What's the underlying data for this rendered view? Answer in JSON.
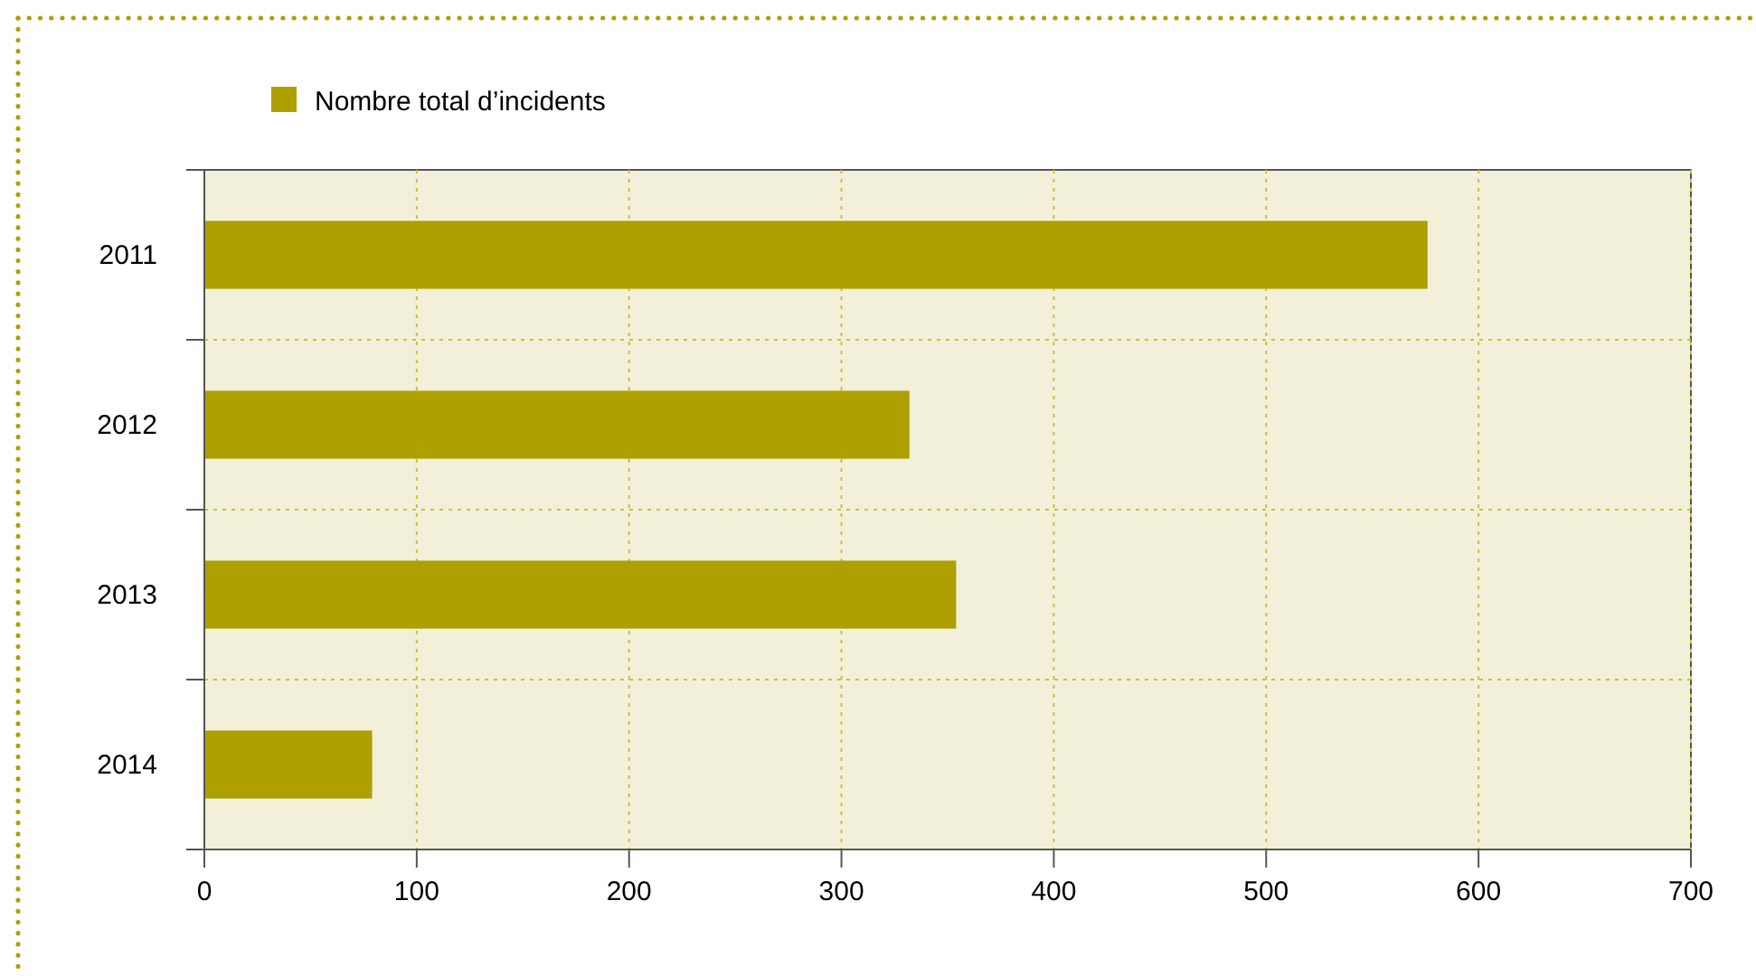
{
  "chart_data": {
    "type": "bar",
    "orientation": "horizontal",
    "categories": [
      "2011",
      "2012",
      "2013",
      "2014"
    ],
    "series": [
      {
        "name": "Nombre total d’incidents",
        "color": "#ada000",
        "values": [
          576,
          332,
          354,
          79
        ]
      }
    ],
    "xlim": [
      0,
      700
    ],
    "xticks": [
      0,
      100,
      200,
      300,
      400,
      500,
      600,
      700
    ],
    "grid": true,
    "legend": "top left"
  }
}
